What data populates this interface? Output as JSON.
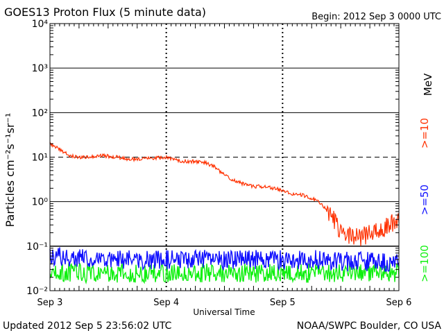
{
  "header": {
    "title": "GOES13 Proton Flux (5 minute data)",
    "begin": "Begin: 2012 Sep 3 0000 UTC"
  },
  "footer": {
    "updated": "Updated 2012 Sep  5 23:56:02 UTC",
    "credit": "NOAA/SWPC Boulder, CO USA"
  },
  "legend": {
    "unit": "MeV",
    "colors": {
      "p10": "#ff3000",
      "p50": "#1010ff",
      "p100": "#10f010"
    }
  },
  "chart_data": {
    "type": "line",
    "title": "GOES13 Proton Flux (5 minute data)",
    "xlabel": "Universal Time",
    "ylabel": "Particles cm⁻²s⁻¹sr⁻¹",
    "yscale": "log",
    "ylim": [
      0.01,
      10000
    ],
    "xlim": [
      "2012-09-03 00:00",
      "2012-09-06 00:00"
    ],
    "x_ticks": [
      "Sep 3",
      "Sep 4",
      "Sep 5",
      "Sep 6"
    ],
    "y_ticks": [
      "10⁻²",
      "10⁻¹",
      "10⁰",
      "10¹",
      "10²",
      "10³",
      "10⁴"
    ],
    "thresholds": [
      {
        "value": 10,
        "style": "dashed"
      },
      {
        "value": 0.1,
        "style": "solid"
      }
    ],
    "grid": true,
    "series": [
      {
        "name": ">=10",
        "color": "#ff3000",
        "x": [
          "2012-09-03 00:00",
          "2012-09-03 02:00",
          "2012-09-03 04:00",
          "2012-09-03 06:00",
          "2012-09-03 08:00",
          "2012-09-03 10:00",
          "2012-09-03 12:00",
          "2012-09-03 14:00",
          "2012-09-03 16:00",
          "2012-09-03 18:00",
          "2012-09-03 20:00",
          "2012-09-03 22:00",
          "2012-09-04 00:00",
          "2012-09-04 02:00",
          "2012-09-04 04:00",
          "2012-09-04 06:00",
          "2012-09-04 08:00",
          "2012-09-04 10:00",
          "2012-09-04 12:00",
          "2012-09-04 14:00",
          "2012-09-04 16:00",
          "2012-09-04 18:00",
          "2012-09-04 20:00",
          "2012-09-04 22:00",
          "2012-09-05 00:00",
          "2012-09-05 02:00",
          "2012-09-05 04:00",
          "2012-09-05 06:00",
          "2012-09-05 08:00",
          "2012-09-05 10:00",
          "2012-09-05 12:00",
          "2012-09-05 14:00",
          "2012-09-05 16:00",
          "2012-09-05 18:00",
          "2012-09-05 20:00",
          "2012-09-05 22:00",
          "2012-09-06 00:00"
        ],
        "values": [
          20,
          15,
          11,
          10,
          10,
          11,
          10.5,
          10,
          9,
          9,
          9.5,
          9.5,
          10,
          8.5,
          8,
          8,
          7.5,
          6,
          4,
          3,
          2.5,
          2.2,
          2.2,
          2,
          1.8,
          1.5,
          1.4,
          1.2,
          0.9,
          0.5,
          0.2,
          0.18,
          0.15,
          0.2,
          0.2,
          0.3,
          0.35
        ]
      },
      {
        "name": ">=50",
        "color": "#1010ff",
        "x": [
          "2012-09-03 00:00",
          "2012-09-03 06:00",
          "2012-09-03 12:00",
          "2012-09-03 18:00",
          "2012-09-04 00:00",
          "2012-09-04 06:00",
          "2012-09-04 12:00",
          "2012-09-04 18:00",
          "2012-09-05 00:00",
          "2012-09-05 06:00",
          "2012-09-05 12:00",
          "2012-09-05 18:00",
          "2012-09-06 00:00"
        ],
        "values": [
          0.06,
          0.055,
          0.05,
          0.05,
          0.05,
          0.05,
          0.05,
          0.05,
          0.05,
          0.05,
          0.045,
          0.045,
          0.04
        ]
      },
      {
        "name": ">=100",
        "color": "#10f010",
        "x": [
          "2012-09-03 00:00",
          "2012-09-03 06:00",
          "2012-09-03 12:00",
          "2012-09-03 18:00",
          "2012-09-04 00:00",
          "2012-09-04 06:00",
          "2012-09-04 12:00",
          "2012-09-04 18:00",
          "2012-09-05 00:00",
          "2012-09-05 06:00",
          "2012-09-05 12:00",
          "2012-09-05 18:00",
          "2012-09-06 00:00"
        ],
        "values": [
          0.025,
          0.025,
          0.025,
          0.025,
          0.025,
          0.025,
          0.025,
          0.025,
          0.025,
          0.025,
          0.025,
          0.025,
          0.025
        ]
      }
    ]
  }
}
